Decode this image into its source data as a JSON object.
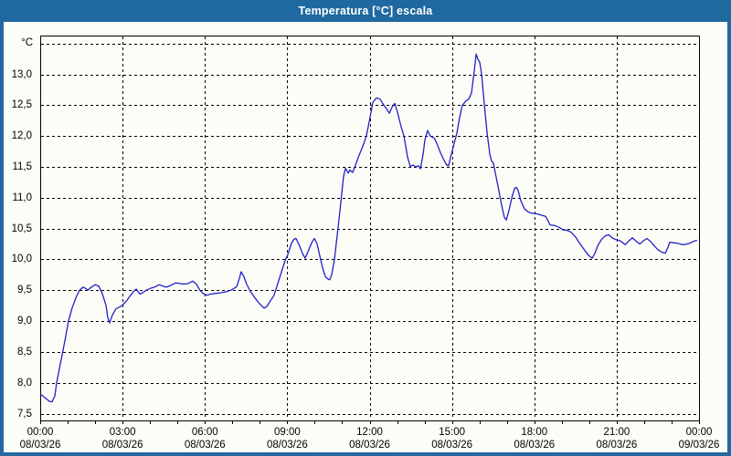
{
  "window": {
    "title": "Temperatura [°C] escala"
  },
  "colors": {
    "titlebar": "#1e69a0",
    "window_border": "#24689e",
    "background": "#fdfdf8",
    "line": "#2020c8",
    "grid": "#000000",
    "text": "#000000"
  },
  "chart_data": {
    "type": "line",
    "title": "Temperatura [°C] escala",
    "ylabel": "°C",
    "xlabel": "",
    "grid": "dashed",
    "legend": "none",
    "ylim": [
      7.39,
      13.63
    ],
    "xlim_hours": [
      0,
      24
    ],
    "y_grid_values": [
      7.5,
      8.0,
      8.5,
      9.0,
      9.5,
      10.0,
      10.5,
      11.0,
      11.5,
      12.0,
      12.5,
      13.0,
      13.5
    ],
    "y_tick_labels": [
      {
        "value": 13.0,
        "label": "13,0"
      },
      {
        "value": 12.5,
        "label": "12,5"
      },
      {
        "value": 12.0,
        "label": "12,0"
      },
      {
        "value": 11.5,
        "label": "11,5"
      },
      {
        "value": 11.0,
        "label": "11,0"
      },
      {
        "value": 10.5,
        "label": "10,5"
      },
      {
        "value": 10.0,
        "label": "10,0"
      },
      {
        "value": 9.5,
        "label": "9,5"
      },
      {
        "value": 9.0,
        "label": "9,0"
      },
      {
        "value": 8.5,
        "label": "8,5"
      },
      {
        "value": 8.0,
        "label": "8,0"
      },
      {
        "value": 7.5,
        "label": "7,5"
      }
    ],
    "x_ticks": [
      {
        "hour": 0,
        "time": "00:00",
        "date": "08/03/26"
      },
      {
        "hour": 3,
        "time": "03:00",
        "date": "08/03/26"
      },
      {
        "hour": 6,
        "time": "06:00",
        "date": "08/03/26"
      },
      {
        "hour": 9,
        "time": "09:00",
        "date": "08/03/26"
      },
      {
        "hour": 12,
        "time": "12:00",
        "date": "08/03/26"
      },
      {
        "hour": 15,
        "time": "15:00",
        "date": "08/03/26"
      },
      {
        "hour": 18,
        "time": "18:00",
        "date": "08/03/26"
      },
      {
        "hour": 21,
        "time": "21:00",
        "date": "08/03/26"
      },
      {
        "hour": 24,
        "time": "00:00",
        "date": "09/03/26"
      }
    ],
    "minor_tick_every_hours": 1,
    "series": [
      {
        "name": "Temperatura",
        "color": "#2020c8",
        "points": [
          [
            0.0,
            7.82
          ],
          [
            0.17,
            7.76
          ],
          [
            0.33,
            7.7
          ],
          [
            0.43,
            7.69
          ],
          [
            0.53,
            7.78
          ],
          [
            0.6,
            8.0
          ],
          [
            0.73,
            8.3
          ],
          [
            0.83,
            8.52
          ],
          [
            0.93,
            8.75
          ],
          [
            1.03,
            9.0
          ],
          [
            1.17,
            9.22
          ],
          [
            1.3,
            9.38
          ],
          [
            1.43,
            9.5
          ],
          [
            1.56,
            9.55
          ],
          [
            1.66,
            9.53
          ],
          [
            1.73,
            9.5
          ],
          [
            1.86,
            9.55
          ],
          [
            2.0,
            9.59
          ],
          [
            2.13,
            9.57
          ],
          [
            2.26,
            9.45
          ],
          [
            2.4,
            9.25
          ],
          [
            2.46,
            9.06
          ],
          [
            2.53,
            8.97
          ],
          [
            2.63,
            9.1
          ],
          [
            2.76,
            9.2
          ],
          [
            2.9,
            9.23
          ],
          [
            3.0,
            9.26
          ],
          [
            3.13,
            9.32
          ],
          [
            3.26,
            9.4
          ],
          [
            3.4,
            9.48
          ],
          [
            3.5,
            9.52
          ],
          [
            3.63,
            9.44
          ],
          [
            3.73,
            9.46
          ],
          [
            3.86,
            9.5
          ],
          [
            4.0,
            9.53
          ],
          [
            4.16,
            9.55
          ],
          [
            4.33,
            9.59
          ],
          [
            4.46,
            9.57
          ],
          [
            4.59,
            9.55
          ],
          [
            4.76,
            9.58
          ],
          [
            4.93,
            9.62
          ],
          [
            5.09,
            9.61
          ],
          [
            5.23,
            9.6
          ],
          [
            5.39,
            9.61
          ],
          [
            5.56,
            9.65
          ],
          [
            5.69,
            9.6
          ],
          [
            5.82,
            9.5
          ],
          [
            5.96,
            9.44
          ],
          [
            6.06,
            9.42
          ],
          [
            6.22,
            9.44
          ],
          [
            6.39,
            9.45
          ],
          [
            6.59,
            9.46
          ],
          [
            6.79,
            9.48
          ],
          [
            6.99,
            9.51
          ],
          [
            7.16,
            9.56
          ],
          [
            7.26,
            9.7
          ],
          [
            7.32,
            9.8
          ],
          [
            7.42,
            9.72
          ],
          [
            7.52,
            9.6
          ],
          [
            7.66,
            9.48
          ],
          [
            7.79,
            9.4
          ],
          [
            7.92,
            9.32
          ],
          [
            8.06,
            9.25
          ],
          [
            8.16,
            9.21
          ],
          [
            8.26,
            9.24
          ],
          [
            8.39,
            9.33
          ],
          [
            8.52,
            9.42
          ],
          [
            8.66,
            9.62
          ],
          [
            8.79,
            9.8
          ],
          [
            8.92,
            9.98
          ],
          [
            9.02,
            10.08
          ],
          [
            9.15,
            10.26
          ],
          [
            9.25,
            10.33
          ],
          [
            9.32,
            10.34
          ],
          [
            9.45,
            10.22
          ],
          [
            9.55,
            10.1
          ],
          [
            9.65,
            10.02
          ],
          [
            9.75,
            10.12
          ],
          [
            9.89,
            10.27
          ],
          [
            9.99,
            10.34
          ],
          [
            10.09,
            10.25
          ],
          [
            10.19,
            10.05
          ],
          [
            10.29,
            9.86
          ],
          [
            10.39,
            9.72
          ],
          [
            10.49,
            9.68
          ],
          [
            10.55,
            9.67
          ],
          [
            10.62,
            9.75
          ],
          [
            10.72,
            10.0
          ],
          [
            10.82,
            10.4
          ],
          [
            10.92,
            10.8
          ],
          [
            10.99,
            11.1
          ],
          [
            11.05,
            11.35
          ],
          [
            11.12,
            11.48
          ],
          [
            11.22,
            11.4
          ],
          [
            11.28,
            11.45
          ],
          [
            11.38,
            11.41
          ],
          [
            11.48,
            11.52
          ],
          [
            11.58,
            11.65
          ],
          [
            11.72,
            11.8
          ],
          [
            11.82,
            11.92
          ],
          [
            11.88,
            12.0
          ],
          [
            11.98,
            12.22
          ],
          [
            12.12,
            12.55
          ],
          [
            12.25,
            12.62
          ],
          [
            12.38,
            12.6
          ],
          [
            12.52,
            12.5
          ],
          [
            12.62,
            12.44
          ],
          [
            12.72,
            12.37
          ],
          [
            12.82,
            12.47
          ],
          [
            12.92,
            12.53
          ],
          [
            13.02,
            12.38
          ],
          [
            13.15,
            12.15
          ],
          [
            13.25,
            12.0
          ],
          [
            13.38,
            11.66
          ],
          [
            13.48,
            11.51
          ],
          [
            13.58,
            11.53
          ],
          [
            13.68,
            11.5
          ],
          [
            13.78,
            11.52
          ],
          [
            13.85,
            11.47
          ],
          [
            13.95,
            11.71
          ],
          [
            14.01,
            11.93
          ],
          [
            14.11,
            12.09
          ],
          [
            14.21,
            12.0
          ],
          [
            14.35,
            11.97
          ],
          [
            14.45,
            11.88
          ],
          [
            14.58,
            11.73
          ],
          [
            14.71,
            11.61
          ],
          [
            14.81,
            11.53
          ],
          [
            14.88,
            11.52
          ],
          [
            14.98,
            11.71
          ],
          [
            15.08,
            11.88
          ],
          [
            15.18,
            12.05
          ],
          [
            15.28,
            12.3
          ],
          [
            15.38,
            12.5
          ],
          [
            15.51,
            12.57
          ],
          [
            15.61,
            12.6
          ],
          [
            15.71,
            12.7
          ],
          [
            15.81,
            13.05
          ],
          [
            15.88,
            13.33
          ],
          [
            15.94,
            13.25
          ],
          [
            16.01,
            13.2
          ],
          [
            16.08,
            13.0
          ],
          [
            16.18,
            12.5
          ],
          [
            16.28,
            12.05
          ],
          [
            16.38,
            11.7
          ],
          [
            16.44,
            11.6
          ],
          [
            16.51,
            11.56
          ],
          [
            16.58,
            11.4
          ],
          [
            16.68,
            11.18
          ],
          [
            16.81,
            10.88
          ],
          [
            16.91,
            10.68
          ],
          [
            16.98,
            10.64
          ],
          [
            17.08,
            10.8
          ],
          [
            17.18,
            11.0
          ],
          [
            17.28,
            11.15
          ],
          [
            17.34,
            11.17
          ],
          [
            17.41,
            11.12
          ],
          [
            17.51,
            10.95
          ],
          [
            17.64,
            10.82
          ],
          [
            17.78,
            10.77
          ],
          [
            17.91,
            10.75
          ],
          [
            18.08,
            10.74
          ],
          [
            18.24,
            10.72
          ],
          [
            18.41,
            10.7
          ],
          [
            18.51,
            10.62
          ],
          [
            18.57,
            10.56
          ],
          [
            18.74,
            10.55
          ],
          [
            18.91,
            10.52
          ],
          [
            19.04,
            10.48
          ],
          [
            19.21,
            10.47
          ],
          [
            19.34,
            10.44
          ],
          [
            19.51,
            10.36
          ],
          [
            19.64,
            10.27
          ],
          [
            19.8,
            10.17
          ],
          [
            19.97,
            10.07
          ],
          [
            20.11,
            10.02
          ],
          [
            20.21,
            10.1
          ],
          [
            20.31,
            10.22
          ],
          [
            20.44,
            10.32
          ],
          [
            20.57,
            10.38
          ],
          [
            20.71,
            10.4
          ],
          [
            20.84,
            10.35
          ],
          [
            20.97,
            10.32
          ],
          [
            21.14,
            10.3
          ],
          [
            21.31,
            10.24
          ],
          [
            21.44,
            10.3
          ],
          [
            21.57,
            10.35
          ],
          [
            21.7,
            10.3
          ],
          [
            21.84,
            10.25
          ],
          [
            21.97,
            10.3
          ],
          [
            22.1,
            10.34
          ],
          [
            22.24,
            10.29
          ],
          [
            22.37,
            10.22
          ],
          [
            22.5,
            10.16
          ],
          [
            22.64,
            10.12
          ],
          [
            22.77,
            10.1
          ],
          [
            22.87,
            10.2
          ],
          [
            22.93,
            10.28
          ],
          [
            23.07,
            10.27
          ],
          [
            23.23,
            10.26
          ],
          [
            23.4,
            10.24
          ],
          [
            23.56,
            10.25
          ],
          [
            23.7,
            10.27
          ],
          [
            23.83,
            10.3
          ],
          [
            23.93,
            10.31
          ]
        ]
      }
    ]
  }
}
